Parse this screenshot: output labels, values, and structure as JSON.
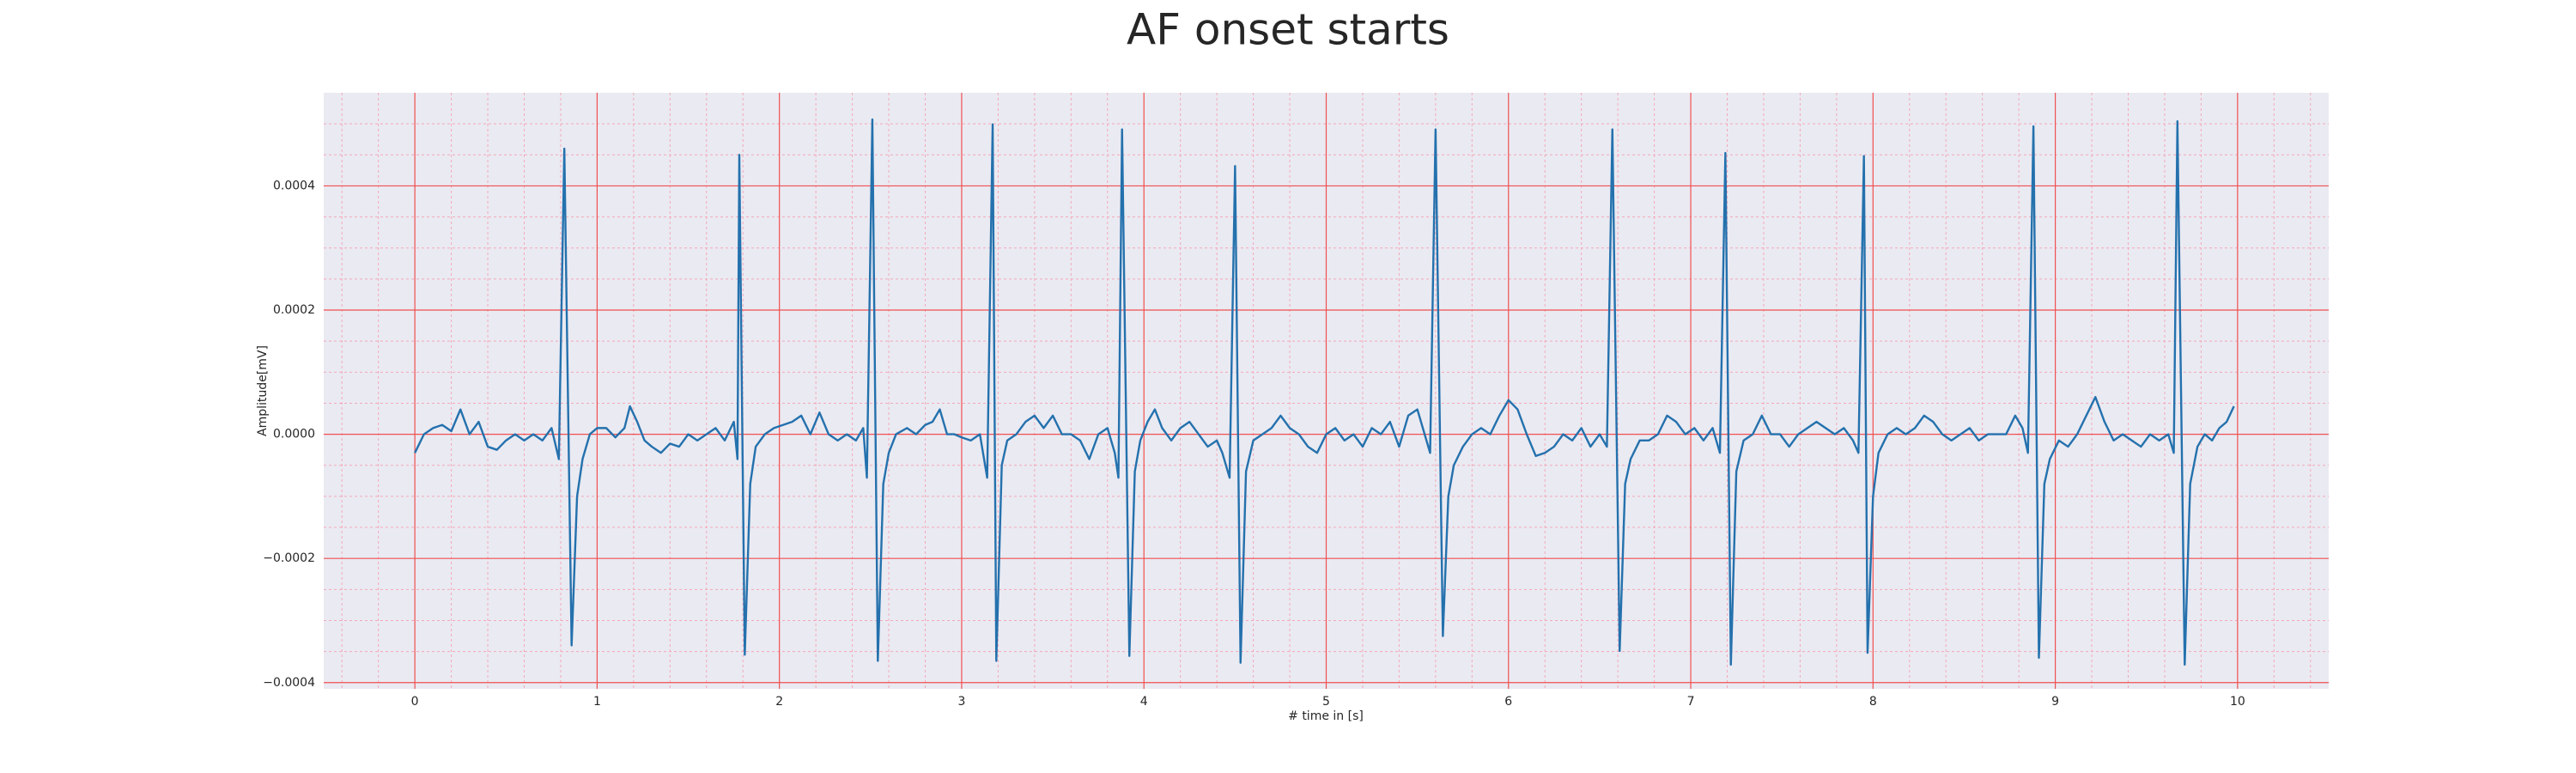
{
  "chart_data": {
    "type": "line",
    "title": "AF onset starts",
    "xlabel": "# time in [s]",
    "ylabel": "Amplitude[mV]",
    "xlim": [
      -0.5,
      10.5
    ],
    "ylim": [
      -0.00041,
      0.00055
    ],
    "xticks": [
      0,
      1,
      2,
      3,
      4,
      5,
      6,
      7,
      8,
      9,
      10
    ],
    "yticks": [
      {
        "value": -0.0004,
        "label": "−0.0004"
      },
      {
        "value": -0.0002,
        "label": "−0.0002"
      },
      {
        "value": 0,
        "label": "0.0000"
      },
      0.0002,
      0.0004
    ],
    "xminorticks": [
      -0.4,
      -0.2,
      0.2,
      0.4,
      0.6,
      0.8,
      1.2,
      1.4,
      1.6,
      1.8,
      2.2,
      2.4,
      2.6,
      2.8,
      3.2,
      3.4,
      3.6,
      3.8,
      4.2,
      4.4,
      4.6,
      4.8,
      5.2,
      5.4,
      5.6,
      5.8,
      6.2,
      6.4,
      6.6,
      6.8,
      7.2,
      7.4,
      7.6,
      7.8,
      8.2,
      8.4,
      8.6,
      8.8,
      9.2,
      9.4,
      9.6,
      9.8,
      10.2,
      10.4
    ],
    "yminorticks": [
      -0.00035,
      -0.0003,
      -0.00025,
      -0.00015,
      -0.0001,
      -5e-05,
      5e-05,
      0.0001,
      0.00015,
      0.00025,
      0.0003,
      0.00035,
      0.00045,
      0.0005
    ],
    "grid": true,
    "series": [
      {
        "color": "#2471ad",
        "x": [
          0,
          0.05,
          0.1,
          0.15,
          0.2,
          0.25,
          0.3,
          0.35,
          0.4,
          0.45,
          0.5,
          0.55,
          0.6,
          0.65,
          0.7,
          0.75,
          0.79,
          0.82,
          0.86,
          0.89,
          0.92,
          0.96,
          1.0,
          1.05,
          1.1,
          1.15,
          1.18,
          1.22,
          1.26,
          1.3,
          1.35,
          1.4,
          1.45,
          1.5,
          1.55,
          1.6,
          1.65,
          1.7,
          1.75,
          1.77,
          1.78,
          1.81,
          1.84,
          1.87,
          1.92,
          1.97,
          2.02,
          2.07,
          2.12,
          2.17,
          2.22,
          2.27,
          2.32,
          2.37,
          2.42,
          2.46,
          2.48,
          2.51,
          2.54,
          2.57,
          2.6,
          2.64,
          2.7,
          2.75,
          2.8,
          2.84,
          2.88,
          2.92,
          2.96,
          3.0,
          3.05,
          3.1,
          3.14,
          3.17,
          3.19,
          3.22,
          3.25,
          3.3,
          3.35,
          3.4,
          3.45,
          3.5,
          3.55,
          3.6,
          3.65,
          3.7,
          3.75,
          3.8,
          3.84,
          3.86,
          3.88,
          3.92,
          3.95,
          3.98,
          4.02,
          4.06,
          4.1,
          4.15,
          4.2,
          4.25,
          4.3,
          4.35,
          4.4,
          4.43,
          4.47,
          4.5,
          4.53,
          4.56,
          4.6,
          4.65,
          4.7,
          4.75,
          4.8,
          4.85,
          4.9,
          4.95,
          5.0,
          5.05,
          5.1,
          5.15,
          5.2,
          5.25,
          5.3,
          5.35,
          5.4,
          5.45,
          5.5,
          5.54,
          5.57,
          5.6,
          5.64,
          5.67,
          5.7,
          5.75,
          5.8,
          5.85,
          5.9,
          5.95,
          6.0,
          6.05,
          6.1,
          6.15,
          6.2,
          6.25,
          6.3,
          6.35,
          6.4,
          6.45,
          6.5,
          6.54,
          6.57,
          6.61,
          6.64,
          6.67,
          6.72,
          6.77,
          6.82,
          6.87,
          6.92,
          6.97,
          7.02,
          7.07,
          7.12,
          7.16,
          7.19,
          7.22,
          7.25,
          7.29,
          7.34,
          7.39,
          7.44,
          7.49,
          7.54,
          7.59,
          7.64,
          7.69,
          7.74,
          7.79,
          7.84,
          7.89,
          7.92,
          7.95,
          7.97,
          8.0,
          8.03,
          8.08,
          8.13,
          8.18,
          8.23,
          8.28,
          8.33,
          8.38,
          8.43,
          8.48,
          8.53,
          8.58,
          8.63,
          8.68,
          8.73,
          8.78,
          8.82,
          8.85,
          8.88,
          8.91,
          8.94,
          8.97,
          9.02,
          9.07,
          9.12,
          9.17,
          9.22,
          9.27,
          9.32,
          9.37,
          9.42,
          9.47,
          9.52,
          9.57,
          9.62,
          9.65,
          9.67,
          9.71,
          9.74,
          9.78,
          9.82,
          9.86,
          9.9,
          9.94,
          9.98
        ],
        "values": [
          -3e-05,
          0,
          1e-05,
          1.5e-05,
          5e-06,
          4e-05,
          0,
          2e-05,
          -2e-05,
          -2.5e-05,
          -1e-05,
          0,
          -1e-05,
          0,
          -1e-05,
          1e-05,
          -4e-05,
          0.00046,
          -0.00034,
          -0.0001,
          -4e-05,
          0,
          1e-05,
          1e-05,
          -5e-06,
          1e-05,
          4.5e-05,
          2e-05,
          -1e-05,
          -2e-05,
          -3e-05,
          -1.5e-05,
          -2e-05,
          0,
          -1e-05,
          0,
          1e-05,
          -1e-05,
          2e-05,
          -4e-05,
          0.00045,
          -0.000355,
          -8e-05,
          -2e-05,
          0,
          1e-05,
          1.5e-05,
          2e-05,
          3e-05,
          0,
          3.5e-05,
          0,
          -1e-05,
          0,
          -1e-05,
          1e-05,
          -7e-05,
          0.000507,
          -0.000365,
          -8e-05,
          -3e-05,
          0,
          1e-05,
          0,
          1.5e-05,
          2e-05,
          4e-05,
          0,
          0,
          -5e-06,
          -1e-05,
          0,
          -7e-05,
          0.000499,
          -0.000365,
          -5e-05,
          -1e-05,
          0,
          2e-05,
          3e-05,
          1e-05,
          3e-05,
          0,
          0,
          -1e-05,
          -4e-05,
          0,
          1e-05,
          -3e-05,
          -7e-05,
          0.000491,
          -0.000357,
          -6e-05,
          -1e-05,
          2e-05,
          4e-05,
          1e-05,
          -1e-05,
          1e-05,
          2e-05,
          0,
          -2e-05,
          -1e-05,
          -3e-05,
          -7e-05,
          0.000432,
          -0.000368,
          -6e-05,
          -1e-05,
          0,
          1e-05,
          3e-05,
          1e-05,
          0,
          -2e-05,
          -3e-05,
          0,
          1e-05,
          -1e-05,
          0,
          -2e-05,
          1e-05,
          0,
          2e-05,
          -2e-05,
          3e-05,
          4e-05,
          0,
          -3e-05,
          0.000491,
          -0.000325,
          -0.0001,
          -5e-05,
          -2e-05,
          0,
          1e-05,
          0,
          3e-05,
          5.5e-05,
          4e-05,
          0,
          -3.5e-05,
          -3e-05,
          -2e-05,
          0,
          -1e-05,
          1e-05,
          -2e-05,
          0,
          -2e-05,
          0.000491,
          -0.000349,
          -8e-05,
          -4e-05,
          -1e-05,
          -1e-05,
          0,
          3e-05,
          2e-05,
          0,
          1e-05,
          -1e-05,
          1e-05,
          -3e-05,
          0.000453,
          -0.000371,
          -6e-05,
          -1e-05,
          0,
          3e-05,
          0,
          0,
          -2e-05,
          0,
          1e-05,
          2e-05,
          1e-05,
          0,
          1e-05,
          -1e-05,
          -3e-05,
          0.000448,
          -0.000352,
          -0.0001,
          -3e-05,
          0,
          1e-05,
          0,
          1e-05,
          3e-05,
          2e-05,
          0,
          -1e-05,
          0,
          1e-05,
          -1e-05,
          0,
          0,
          0,
          3e-05,
          1e-05,
          -3e-05,
          0.000496,
          -0.00036,
          -8e-05,
          -4e-05,
          -1e-05,
          -2e-05,
          0,
          3e-05,
          6e-05,
          2e-05,
          -1e-05,
          0,
          -1e-05,
          -2e-05,
          0,
          -1e-05,
          0,
          -3e-05,
          0.000504,
          -0.000371,
          -8e-05,
          -2e-05,
          0,
          -1e-05,
          1e-05,
          2e-05,
          4.5e-05
        ]
      }
    ]
  }
}
